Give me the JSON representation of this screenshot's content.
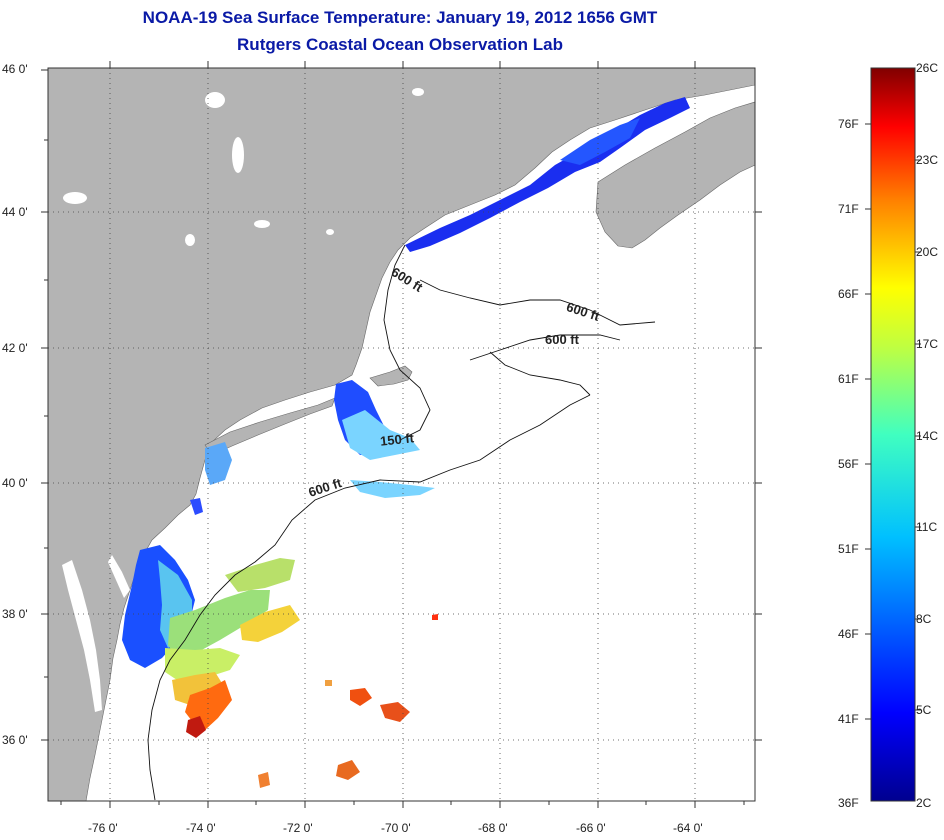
{
  "title": "NOAA-19 Sea Surface Temperature:  January 19, 2012 1656 GMT",
  "subtitle": "Rutgers Coastal Ocean Observation Lab",
  "map": {
    "lon_range": [
      -77,
      -63
    ],
    "lat_range": [
      35,
      46
    ],
    "x_tick_labels": [
      "-76 0'",
      "-74 0'",
      "-72 0'",
      "-70 0'",
      "-68 0'",
      "-66 0'",
      "-64 0'"
    ],
    "y_tick_labels": [
      "46 0'",
      "44 0'",
      "42 0'",
      "40 0'",
      "38 0'",
      "36 0'"
    ],
    "grid": "dotted",
    "land_color": "#b4b4b4",
    "ocean_no_data_color": "#ffffff",
    "contour_labels": [
      "600 ft",
      "600 ft",
      "600 ft",
      "150 ft",
      "600 ft"
    ]
  },
  "colorbar": {
    "fahrenheit_labels": [
      "76F",
      "71F",
      "66F",
      "61F",
      "56F",
      "51F",
      "46F",
      "41F",
      "36F"
    ],
    "celsius_labels": [
      "26C",
      "23C",
      "20C",
      "17C",
      "14C",
      "11C",
      "8C",
      "5C",
      "2C"
    ],
    "range_c": [
      2,
      26
    ],
    "colors": [
      "#00008f",
      "#0000ff",
      "#0080ff",
      "#00ffff",
      "#80ff80",
      "#ffff00",
      "#ff8000",
      "#ff0000",
      "#800000"
    ]
  }
}
